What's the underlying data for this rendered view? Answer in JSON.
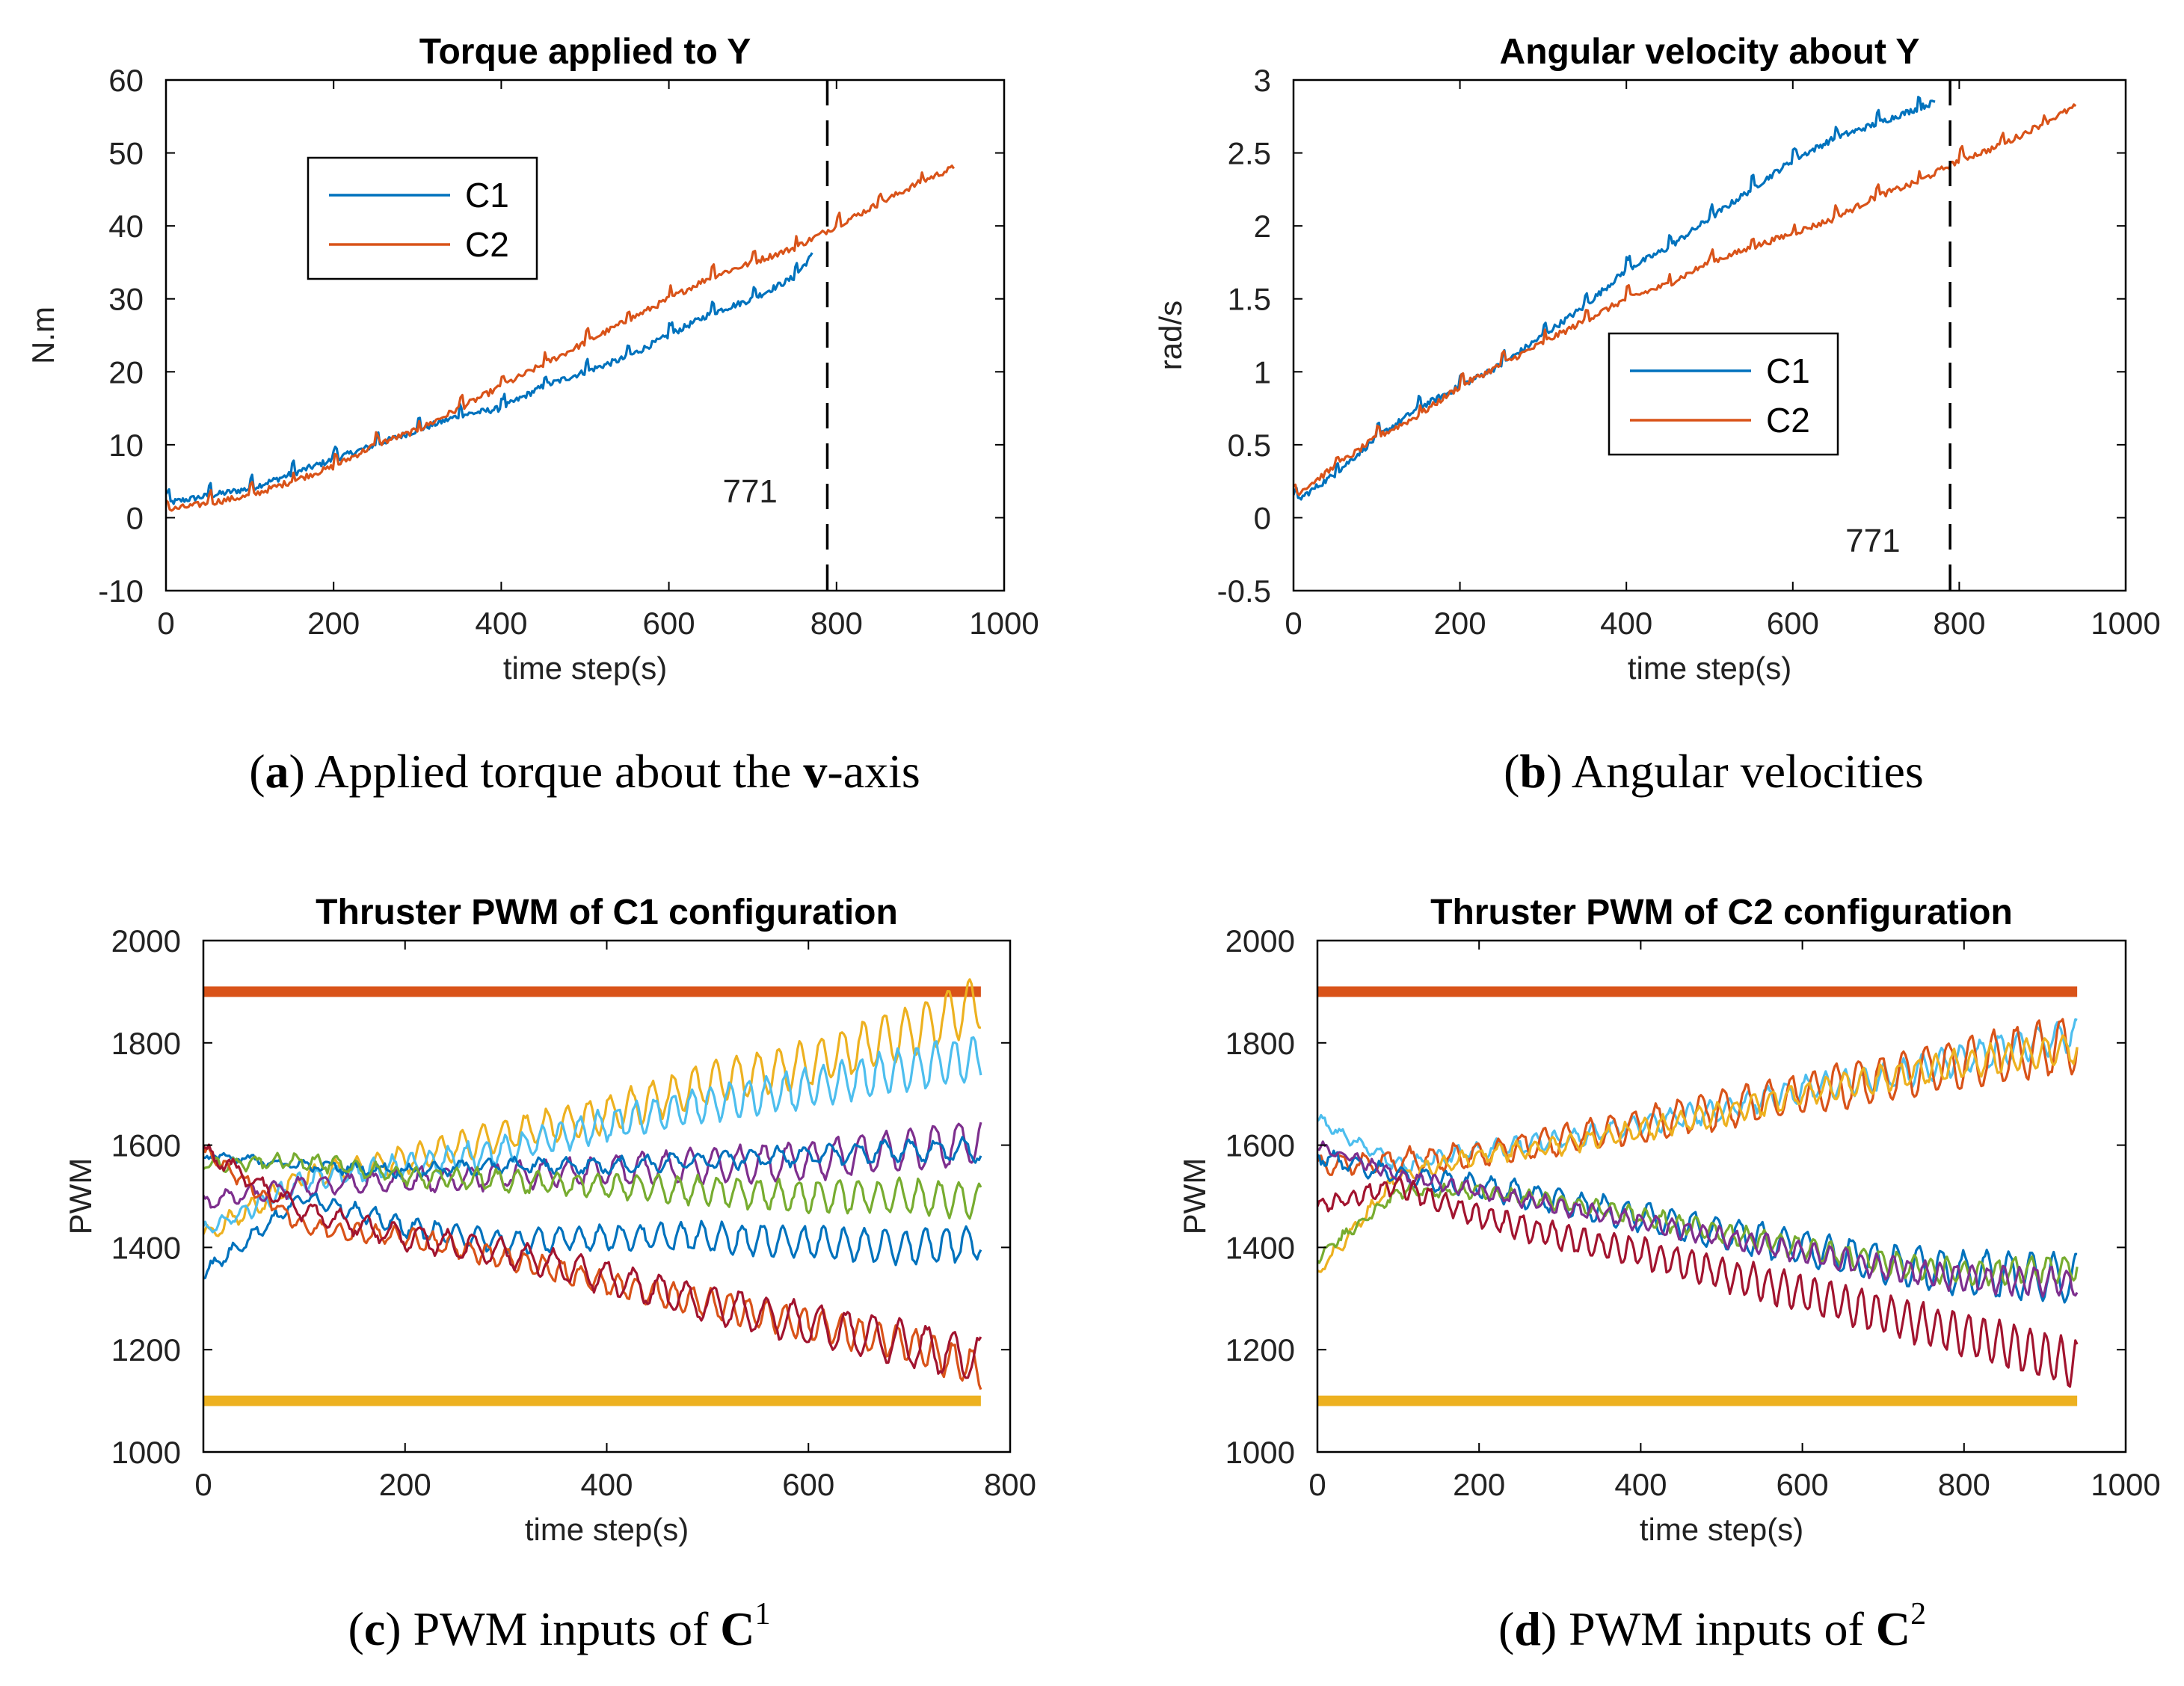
{
  "colors": {
    "blue": "#0072BD",
    "orange": "#D95319",
    "yellow": "#EDB120",
    "purple": "#7E2F8E",
    "green": "#77AC30",
    "cyan": "#4DBEEE",
    "maroon": "#A2142F"
  },
  "chart_data": [
    {
      "id": "a",
      "type": "line",
      "title": "Torque applied to Y",
      "xlabel": "time step(s)",
      "ylabel": "N.m",
      "xlim": [
        0,
        1000
      ],
      "ylim": [
        -10,
        60
      ],
      "xticks": [
        "0",
        "200",
        "400",
        "600",
        "800",
        "1000"
      ],
      "yticks": [
        "-10",
        "0",
        "10",
        "20",
        "30",
        "40",
        "50",
        "60"
      ],
      "legend": [
        "C1",
        "C2"
      ],
      "annotation": {
        "x": 771,
        "label": "771"
      },
      "series": [
        {
          "name": "C1",
          "x": [
            0,
            50,
            100,
            150,
            200,
            250,
            300,
            350,
            400,
            450,
            500,
            550,
            600,
            650,
            700,
            750,
            771
          ],
          "y": [
            2,
            3,
            4,
            6,
            8,
            10,
            12,
            14,
            15,
            18,
            20,
            22,
            25,
            28,
            30,
            33,
            36
          ]
        },
        {
          "name": "C2",
          "x": [
            0,
            50,
            100,
            150,
            200,
            250,
            300,
            350,
            400,
            450,
            500,
            550,
            600,
            650,
            700,
            750,
            800,
            850,
            900,
            940
          ],
          "y": [
            1,
            2,
            3,
            5,
            7,
            10,
            12,
            15,
            18,
            21,
            24,
            27,
            30,
            33,
            35,
            37,
            40,
            43,
            46,
            48
          ]
        }
      ]
    },
    {
      "id": "b",
      "type": "line",
      "title": "Angular velocity about Y",
      "xlabel": "time step(s)",
      "ylabel": "rad/s",
      "xlim": [
        0,
        1000
      ],
      "ylim": [
        -0.5,
        3
      ],
      "xticks": [
        "0",
        "200",
        "400",
        "600",
        "800",
        "1000"
      ],
      "yticks": [
        "-0.5",
        "0",
        "0.5",
        "1",
        "1.5",
        "2",
        "2.5",
        "3"
      ],
      "legend": [
        "C1",
        "C2"
      ],
      "annotation": {
        "x": 771,
        "label": "771"
      },
      "series": [
        {
          "name": "C1",
          "x": [
            0,
            50,
            100,
            150,
            200,
            250,
            300,
            350,
            400,
            450,
            500,
            550,
            600,
            650,
            700,
            771
          ],
          "y": [
            0.1,
            0.3,
            0.55,
            0.75,
            0.9,
            1.05,
            1.25,
            1.45,
            1.7,
            1.85,
            2.05,
            2.25,
            2.45,
            2.6,
            2.7,
            2.85
          ]
        },
        {
          "name": "C2",
          "x": [
            0,
            50,
            100,
            150,
            200,
            250,
            300,
            350,
            400,
            450,
            500,
            550,
            600,
            650,
            700,
            750,
            800,
            850,
            900,
            940
          ],
          "y": [
            0.15,
            0.35,
            0.55,
            0.7,
            0.9,
            1.05,
            1.2,
            1.35,
            1.5,
            1.6,
            1.75,
            1.85,
            1.95,
            2.05,
            2.2,
            2.3,
            2.45,
            2.55,
            2.7,
            2.82
          ]
        }
      ]
    },
    {
      "id": "c",
      "type": "line",
      "title": "Thruster PWM of C1 configuration",
      "xlabel": "time step(s)",
      "ylabel": "PWM",
      "xlim": [
        0,
        800
      ],
      "ylim": [
        1000,
        2000
      ],
      "xticks": [
        "0",
        "200",
        "400",
        "600",
        "800"
      ],
      "yticks": [
        "1000",
        "1200",
        "1400",
        "1600",
        "1800",
        "2000"
      ],
      "limits": {
        "upper": 1900,
        "lower": 1100
      },
      "series": [
        {
          "name": "thruster-1",
          "color": "yellow",
          "x": [
            0,
            100,
            200,
            300,
            400,
            500,
            600,
            700,
            771
          ],
          "y": [
            1420,
            1540,
            1570,
            1620,
            1660,
            1720,
            1760,
            1820,
            1880
          ]
        },
        {
          "name": "thruster-2",
          "color": "cyan",
          "x": [
            0,
            100,
            200,
            300,
            400,
            500,
            600,
            700,
            771
          ],
          "y": [
            1430,
            1530,
            1560,
            1590,
            1640,
            1680,
            1710,
            1750,
            1770
          ]
        },
        {
          "name": "thruster-3",
          "color": "purple",
          "x": [
            0,
            100,
            200,
            300,
            400,
            500,
            600,
            700,
            771
          ],
          "y": [
            1490,
            1520,
            1530,
            1540,
            1550,
            1560,
            1570,
            1590,
            1610
          ]
        },
        {
          "name": "thruster-4",
          "color": "blue",
          "x": [
            0,
            100,
            200,
            300,
            400,
            500,
            600,
            700,
            771
          ],
          "y": [
            1580,
            1560,
            1550,
            1560,
            1560,
            1570,
            1580,
            1590,
            1590
          ]
        },
        {
          "name": "thruster-5",
          "color": "green",
          "x": [
            0,
            100,
            200,
            300,
            400,
            500,
            600,
            700,
            771
          ],
          "y": [
            1560,
            1570,
            1540,
            1530,
            1520,
            1510,
            1500,
            1500,
            1490
          ]
        },
        {
          "name": "thruster-6",
          "color": "blue",
          "x": [
            0,
            100,
            200,
            300,
            400,
            500,
            600,
            700,
            771
          ],
          "y": [
            1350,
            1500,
            1440,
            1410,
            1420,
            1420,
            1410,
            1400,
            1410
          ]
        },
        {
          "name": "thruster-7",
          "color": "orange",
          "x": [
            0,
            100,
            200,
            300,
            400,
            500,
            600,
            700,
            771
          ],
          "y": [
            1590,
            1440,
            1420,
            1380,
            1330,
            1290,
            1250,
            1210,
            1160
          ]
        },
        {
          "name": "thruster-8",
          "color": "maroon",
          "x": [
            0,
            100,
            200,
            300,
            400,
            500,
            600,
            700,
            771
          ],
          "y": [
            1590,
            1470,
            1420,
            1390,
            1340,
            1290,
            1250,
            1210,
            1180
          ]
        }
      ]
    },
    {
      "id": "d",
      "type": "line",
      "title": "Thruster PWM of C2 configuration",
      "xlabel": "time step(s)",
      "ylabel": "PWM",
      "xlim": [
        0,
        1000
      ],
      "ylim": [
        1000,
        2000
      ],
      "xticks": [
        "0",
        "200",
        "400",
        "600",
        "800",
        "1000"
      ],
      "yticks": [
        "1000",
        "1200",
        "1400",
        "1600",
        "1800",
        "2000"
      ],
      "limits": {
        "upper": 1900,
        "lower": 1100
      },
      "series": [
        {
          "name": "thruster-1",
          "color": "cyan",
          "x": [
            0,
            100,
            200,
            300,
            400,
            500,
            600,
            700,
            800,
            940
          ],
          "y": [
            1650,
            1560,
            1590,
            1610,
            1640,
            1670,
            1710,
            1730,
            1770,
            1820
          ]
        },
        {
          "name": "thruster-2",
          "color": "orange",
          "x": [
            0,
            100,
            200,
            300,
            400,
            500,
            600,
            700,
            800,
            940
          ],
          "y": [
            1560,
            1570,
            1580,
            1610,
            1640,
            1670,
            1700,
            1730,
            1760,
            1800
          ]
        },
        {
          "name": "thruster-3",
          "color": "yellow",
          "x": [
            0,
            100,
            200,
            300,
            400,
            500,
            600,
            700,
            800,
            940
          ],
          "y": [
            1350,
            1540,
            1580,
            1600,
            1630,
            1660,
            1700,
            1730,
            1760,
            1790
          ]
        },
        {
          "name": "thruster-4",
          "color": "blue",
          "x": [
            0,
            100,
            200,
            300,
            400,
            500,
            600,
            700,
            800,
            940
          ],
          "y": [
            1580,
            1540,
            1520,
            1490,
            1460,
            1430,
            1400,
            1370,
            1350,
            1340
          ]
        },
        {
          "name": "thruster-5",
          "color": "green",
          "x": [
            0,
            100,
            200,
            300,
            400,
            500,
            600,
            700,
            800,
            940
          ],
          "y": [
            1380,
            1510,
            1510,
            1490,
            1460,
            1430,
            1400,
            1370,
            1350,
            1360
          ]
        },
        {
          "name": "thruster-6",
          "color": "purple",
          "x": [
            0,
            100,
            200,
            300,
            400,
            500,
            600,
            700,
            800,
            940
          ],
          "y": [
            1600,
            1540,
            1510,
            1480,
            1450,
            1420,
            1390,
            1360,
            1340,
            1330
          ]
        },
        {
          "name": "thruster-7",
          "color": "maroon",
          "x": [
            0,
            100,
            200,
            300,
            400,
            500,
            600,
            700,
            800,
            940
          ],
          "y": [
            1480,
            1520,
            1460,
            1420,
            1390,
            1350,
            1310,
            1270,
            1230,
            1170
          ]
        }
      ]
    }
  ],
  "captions": [
    {
      "letter": "a",
      "open": "(",
      "close": ")",
      "text_before": " Applied torque about the ",
      "bold": "v",
      "text_after": "-axis"
    },
    {
      "letter": "b",
      "open": "(",
      "close": ")",
      "text_before": " Angular velocities",
      "bold": "",
      "text_after": ""
    },
    {
      "letter": "c",
      "open": "(",
      "close": ")",
      "text_before": " PWM inputs of ",
      "bold": "C",
      "sup": "1"
    },
    {
      "letter": "d",
      "open": "(",
      "close": ")",
      "text_before": " PWM inputs of ",
      "bold": "C",
      "sup": "2"
    }
  ]
}
